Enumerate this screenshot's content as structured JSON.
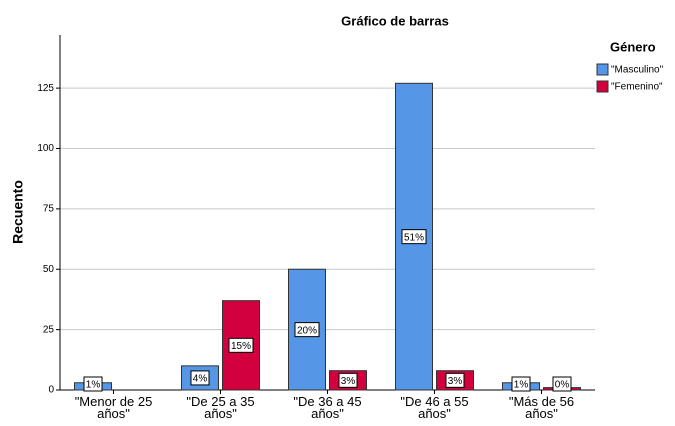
{
  "chart_data": {
    "type": "bar",
    "title": "Gráfico de barras",
    "y_label": "Recuento",
    "legend_title": "Género",
    "legend": "right",
    "grid": true,
    "categories": [
      "\"Menor de 25 años\"",
      "\"De 25 a 35 años\"",
      "\"De 36 a 45 años\"",
      "\"De 46 a 55 años\"",
      "\"Más de 56 años\""
    ],
    "series": [
      {
        "name": "\"Masculino\"",
        "color": "#5596e6",
        "values": [
          3,
          10,
          50,
          127,
          3
        ],
        "value_labels": [
          "1%",
          "4%",
          "20%",
          "51%",
          "1%"
        ]
      },
      {
        "name": "\"Femenino\"",
        "color": "#d2003c",
        "values": [
          0,
          37,
          8,
          8,
          1
        ],
        "value_labels": [
          null,
          "15%",
          "3%",
          "3%",
          "0%"
        ]
      }
    ],
    "ylim": [
      0,
      147
    ],
    "yticks": [
      0,
      25,
      50,
      75,
      100,
      125
    ]
  }
}
